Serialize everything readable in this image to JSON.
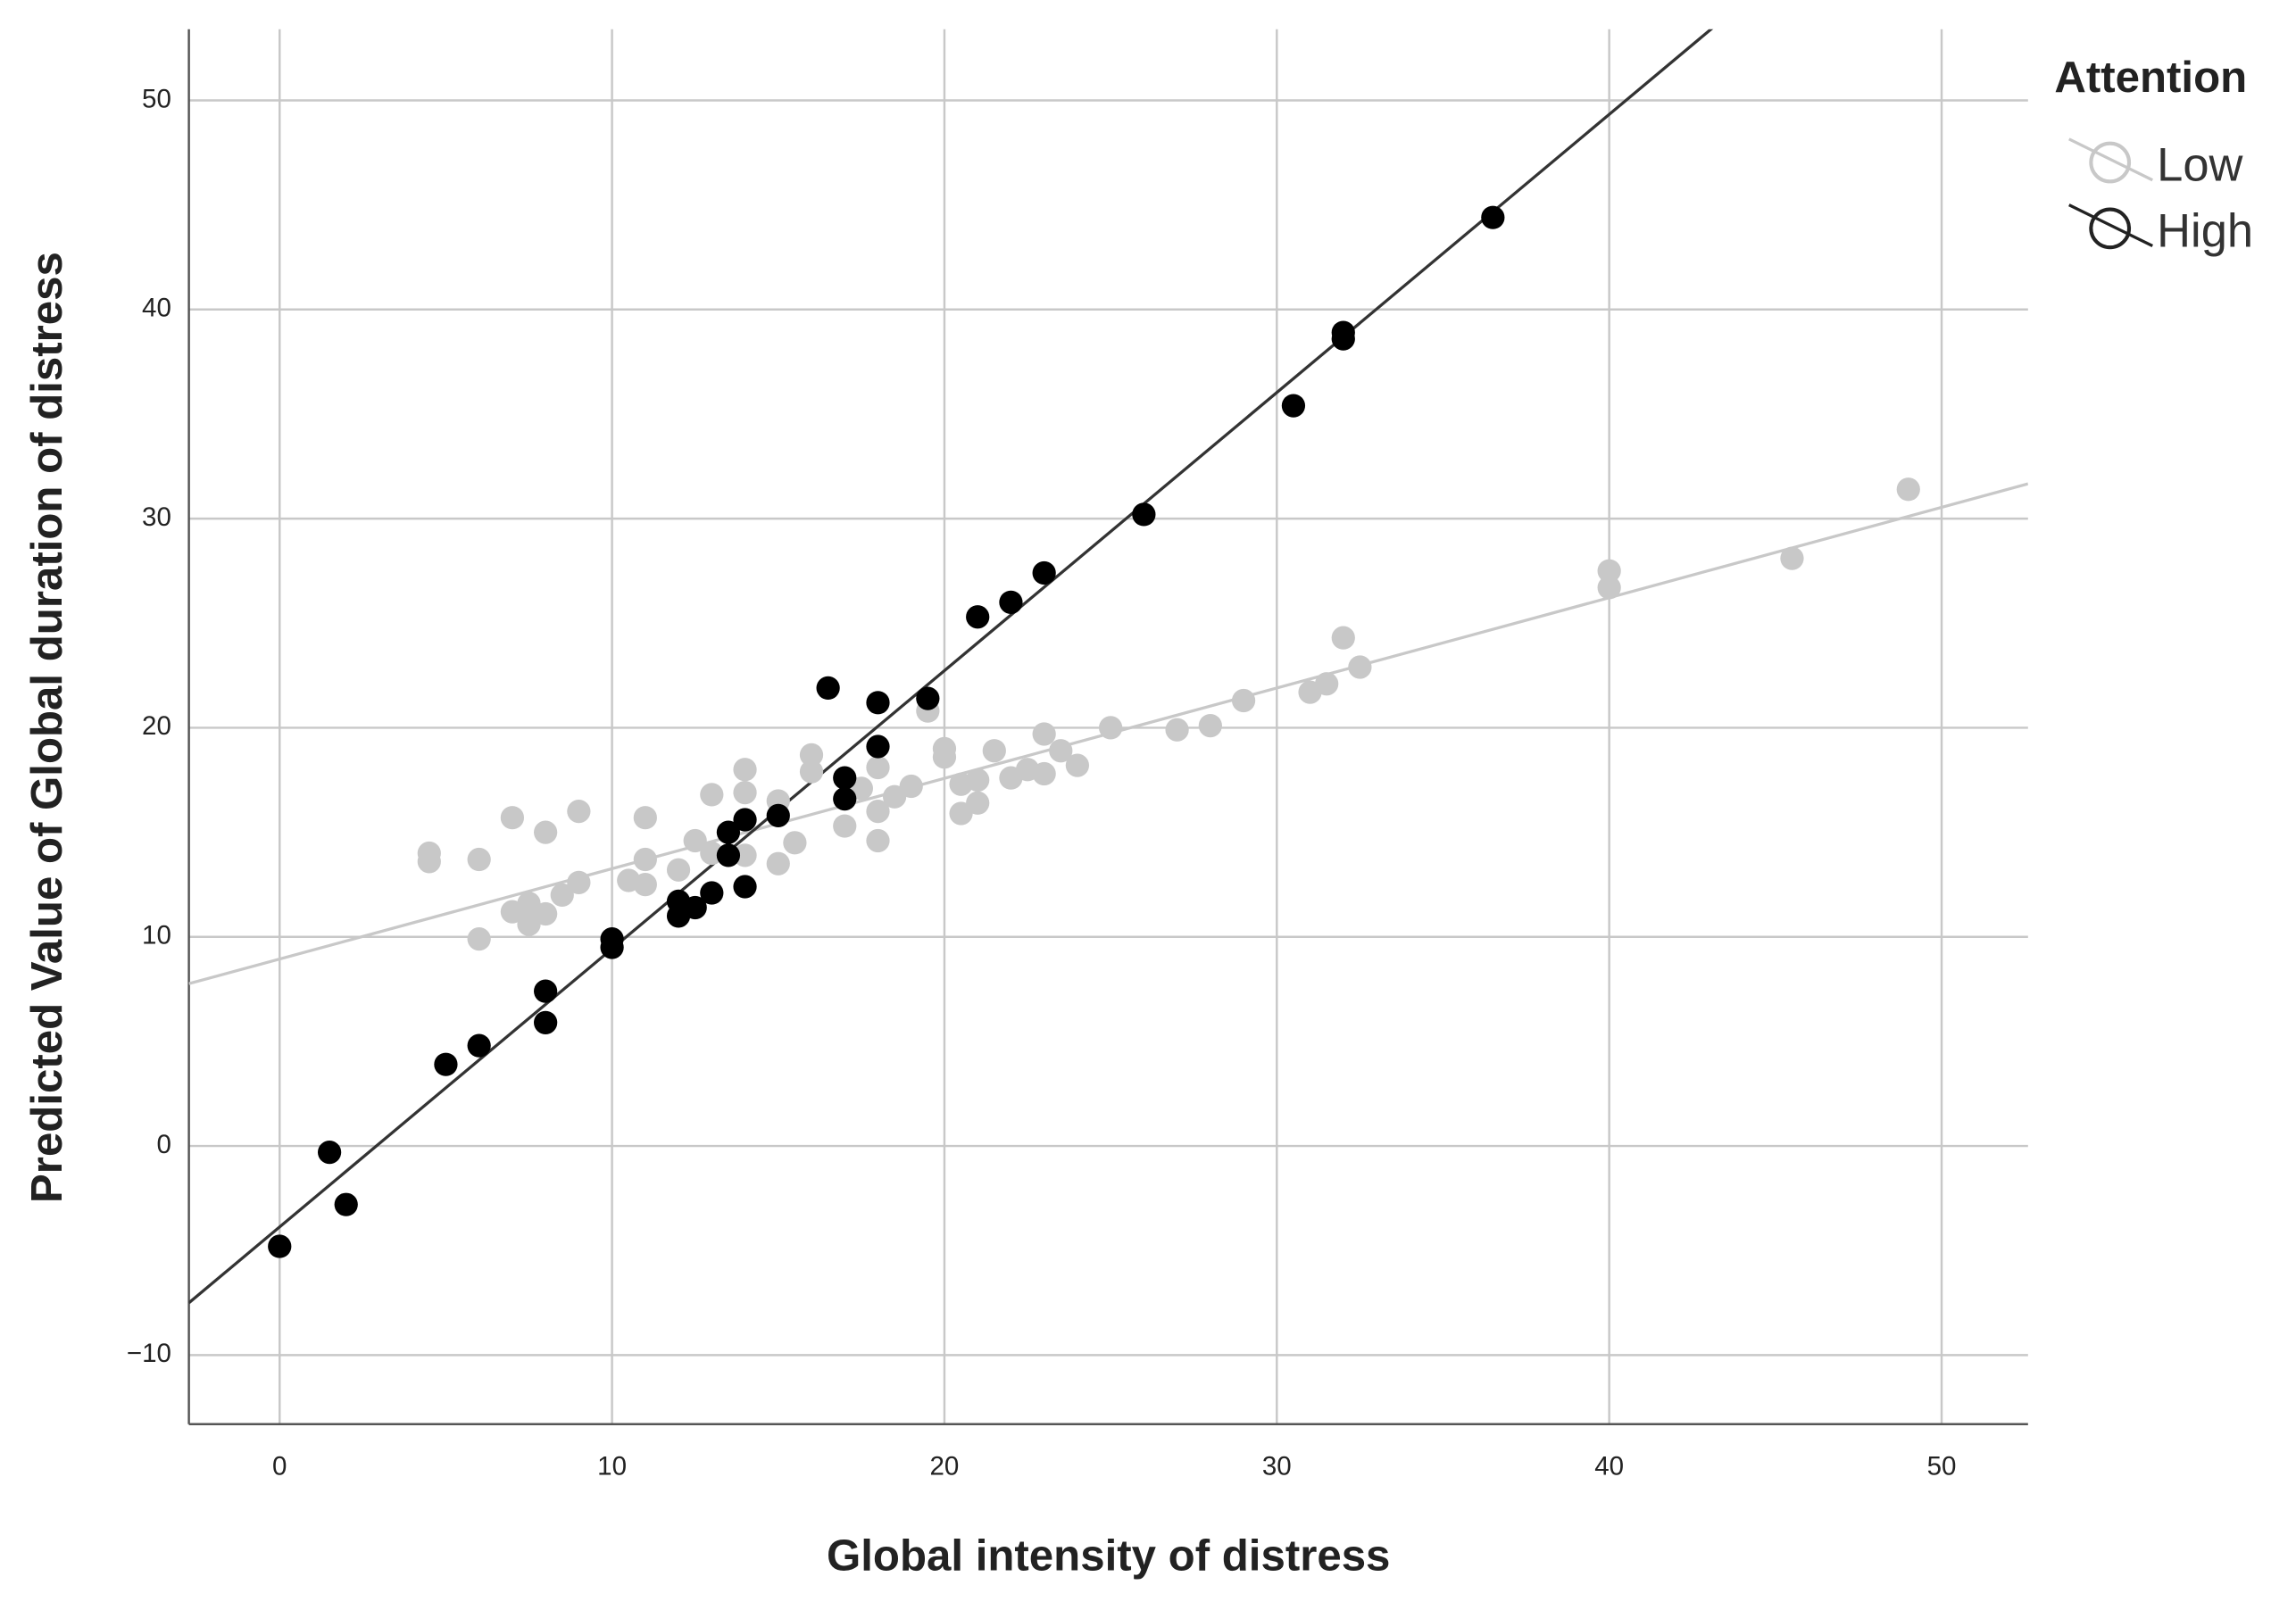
{
  "chart_data": {
    "type": "scatter",
    "x_label": "Global intensity of distress",
    "y_label": "Predicted Value of Global duration of distress",
    "legend_title": "Attention",
    "legend_position": "right",
    "grid": true,
    "xlim": [
      -2.73,
      52.6
    ],
    "ylim": [
      -13.3,
      53.4
    ],
    "xticks": [
      0,
      10,
      20,
      30,
      40,
      50
    ],
    "yticks": [
      {
        "value": -10,
        "label": "−10"
      },
      0,
      10,
      20,
      30,
      40,
      50
    ],
    "series": [
      {
        "name": "Low",
        "color": "#c8c8c8",
        "fit": {
          "intercept": 8.94,
          "slope": 0.432
        },
        "x": [
          4.5,
          4.5,
          6,
          6,
          7,
          7,
          7.5,
          7.5,
          8,
          8,
          8.5,
          9,
          9,
          10.5,
          11,
          11,
          11,
          12,
          12.5,
          13,
          13,
          14,
          14,
          14,
          15,
          15,
          15.5,
          16,
          16,
          17,
          17.5,
          18,
          18,
          18,
          18.5,
          19,
          19.5,
          20,
          20,
          20.5,
          20.5,
          21,
          21,
          21.5,
          22,
          22.5,
          23,
          23,
          23.5,
          24,
          25,
          27,
          28,
          29,
          31,
          31.5,
          32,
          32.5,
          40,
          40,
          45.5,
          49
        ],
        "values": [
          14.0,
          13.6,
          13.7,
          9.9,
          15.7,
          11.2,
          11.6,
          10.6,
          15.0,
          11.1,
          12.0,
          16.0,
          12.6,
          12.7,
          15.7,
          13.7,
          12.5,
          13.2,
          14.6,
          16.8,
          14.0,
          18.0,
          16.9,
          13.9,
          16.5,
          13.5,
          14.5,
          18.7,
          17.9,
          15.3,
          17.1,
          18.1,
          16.0,
          14.6,
          16.7,
          17.2,
          20.8,
          19.0,
          18.6,
          17.3,
          15.9,
          17.5,
          16.4,
          18.9,
          17.6,
          18.0,
          19.7,
          17.8,
          18.9,
          18.2,
          20.0,
          19.9,
          20.1,
          21.3,
          21.7,
          22.1,
          24.3,
          22.9,
          27.5,
          26.7,
          28.1,
          31.4
        ]
      },
      {
        "name": "High",
        "color": "#000000",
        "fit": {
          "intercept": -3.87,
          "slope": 1.33
        },
        "x": [
          0,
          1.5,
          2,
          5,
          6,
          8,
          8,
          10,
          10,
          12,
          12,
          12.5,
          13,
          13.5,
          13.5,
          14,
          14,
          15,
          16.5,
          17,
          17,
          18,
          18,
          19.5,
          21,
          22,
          23,
          26,
          30.5,
          32,
          32,
          36.5
        ],
        "values": [
          -4.8,
          -0.3,
          -2.8,
          3.9,
          4.8,
          7.4,
          5.9,
          9.9,
          9.5,
          11.7,
          11.0,
          11.4,
          12.1,
          15.0,
          13.9,
          15.6,
          12.4,
          15.8,
          21.9,
          17.6,
          16.6,
          21.2,
          19.1,
          21.4,
          25.3,
          26.0,
          27.4,
          30.2,
          35.4,
          38.6,
          38.9,
          44.4
        ]
      }
    ]
  }
}
